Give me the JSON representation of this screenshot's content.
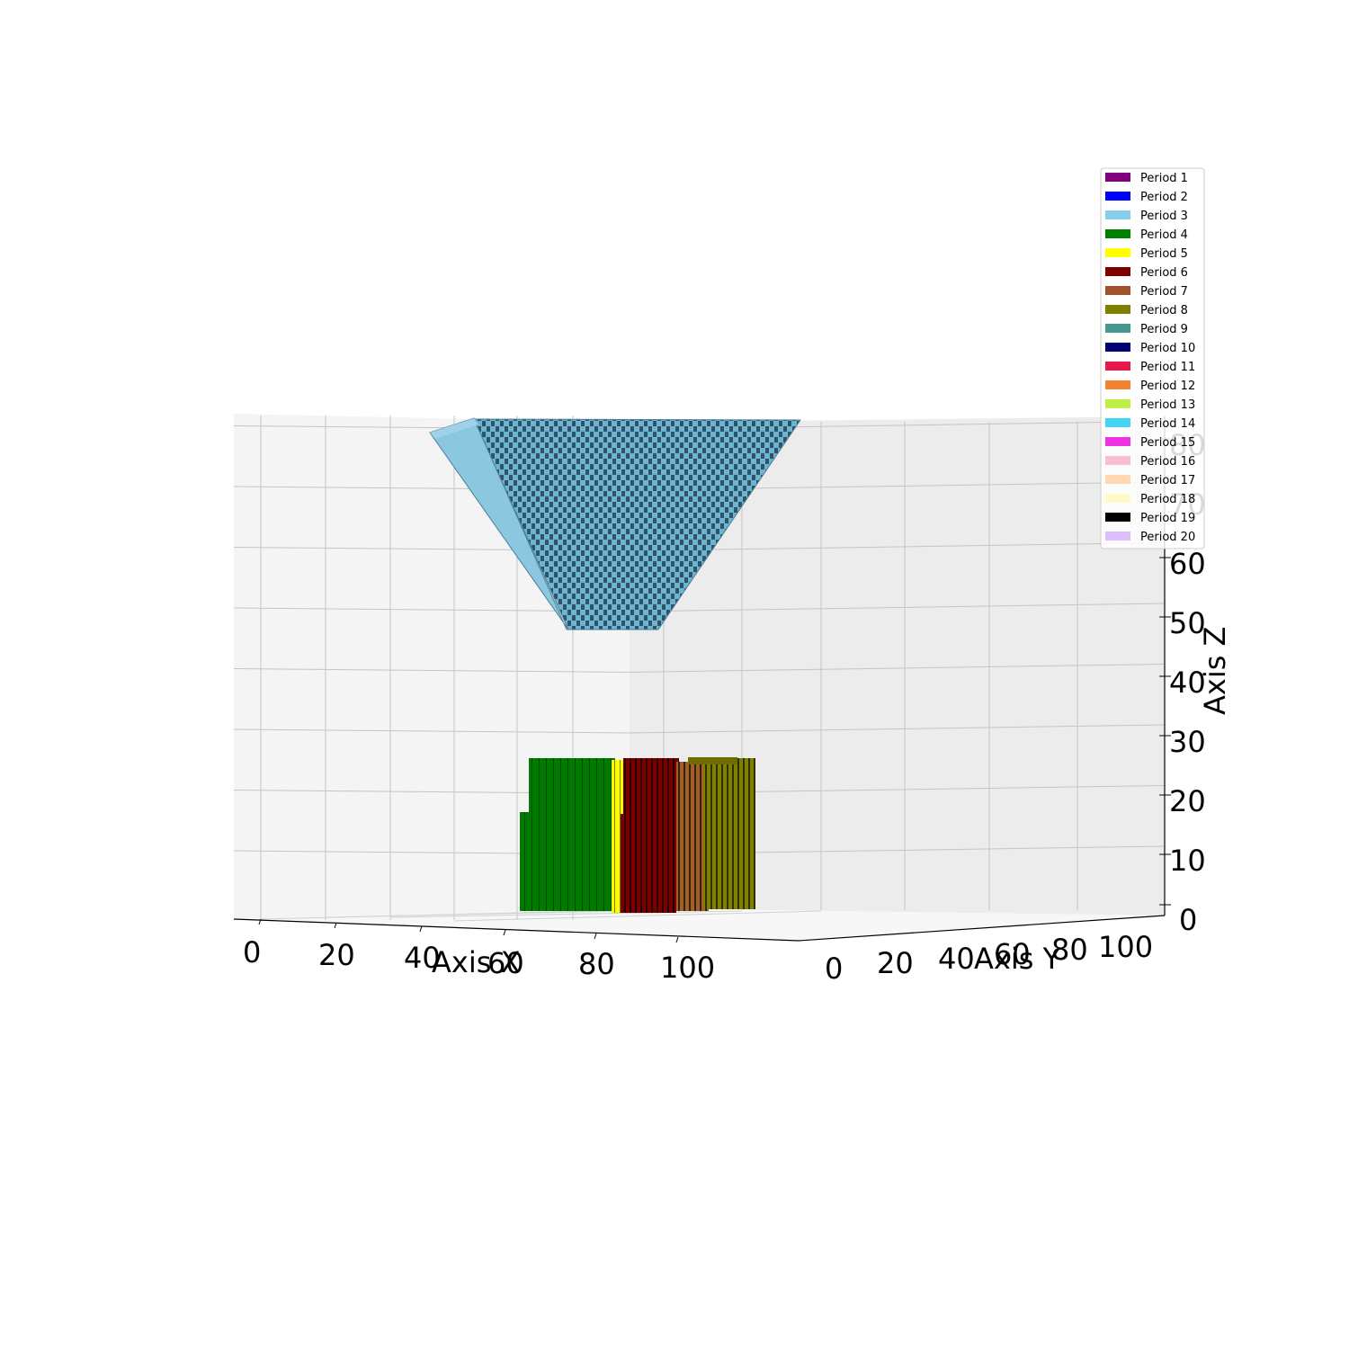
{
  "chart_data": {
    "type": "3d-voxel",
    "xlabel": "Axis X",
    "ylabel": "Axis Y",
    "zlabel": "Axis Z",
    "xlim": [
      0,
      120
    ],
    "ylim": [
      0,
      120
    ],
    "zlim": [
      0,
      85
    ],
    "x_ticks": [
      "0",
      "20",
      "40",
      "60",
      "80",
      "100"
    ],
    "y_ticks": [
      "0",
      "20",
      "40",
      "60",
      "80",
      "100"
    ],
    "z_ticks": [
      "0",
      "10",
      "20",
      "30",
      "40",
      "50",
      "60",
      "70",
      "80"
    ],
    "grid": true,
    "legend_position": "top-right",
    "legend": [
      {
        "name": "Period 1",
        "color": "#800080"
      },
      {
        "name": "Period 2",
        "color": "#0000ff"
      },
      {
        "name": "Period 3",
        "color": "#87ceeb"
      },
      {
        "name": "Period 4",
        "color": "#008000"
      },
      {
        "name": "Period 5",
        "color": "#ffff00"
      },
      {
        "name": "Period 6",
        "color": "#800000"
      },
      {
        "name": "Period 7",
        "color": "#a0522d"
      },
      {
        "name": "Period 8",
        "color": "#808000"
      },
      {
        "name": "Period 9",
        "color": "#469990"
      },
      {
        "name": "Period 10",
        "color": "#000075"
      },
      {
        "name": "Period 11",
        "color": "#e6194b"
      },
      {
        "name": "Period 12",
        "color": "#f58231"
      },
      {
        "name": "Period 13",
        "color": "#bfef45"
      },
      {
        "name": "Period 14",
        "color": "#42d4f4"
      },
      {
        "name": "Period 15",
        "color": "#f032e6"
      },
      {
        "name": "Period 16",
        "color": "#fabed4"
      },
      {
        "name": "Period 17",
        "color": "#ffd8b1"
      },
      {
        "name": "Period 18",
        "color": "#fffac8"
      },
      {
        "name": "Period 19",
        "color": "#000000"
      },
      {
        "name": "Period 20",
        "color": "#dcbeff"
      }
    ],
    "blocks": [
      {
        "period": "Period 3",
        "shape": "inverted-frustum",
        "z": [
          50,
          85
        ],
        "x_top": [
          30,
          110
        ],
        "x_bottom": [
          58,
          80
        ]
      },
      {
        "period": "Period 4",
        "shape": "box",
        "x": [
          51,
          68
        ],
        "z": [
          0,
          25
        ]
      },
      {
        "period": "Period 5",
        "shape": "box",
        "x": [
          68,
          71
        ],
        "z": [
          0,
          25
        ]
      },
      {
        "period": "Period 6",
        "shape": "box",
        "x": [
          71,
          84
        ],
        "z": [
          0,
          25
        ]
      },
      {
        "period": "Period 7",
        "shape": "box",
        "x": [
          84,
          90
        ],
        "z": [
          0,
          25
        ]
      },
      {
        "period": "Period 8",
        "shape": "box",
        "x": [
          90,
          100
        ],
        "z": [
          0,
          25
        ]
      }
    ]
  }
}
